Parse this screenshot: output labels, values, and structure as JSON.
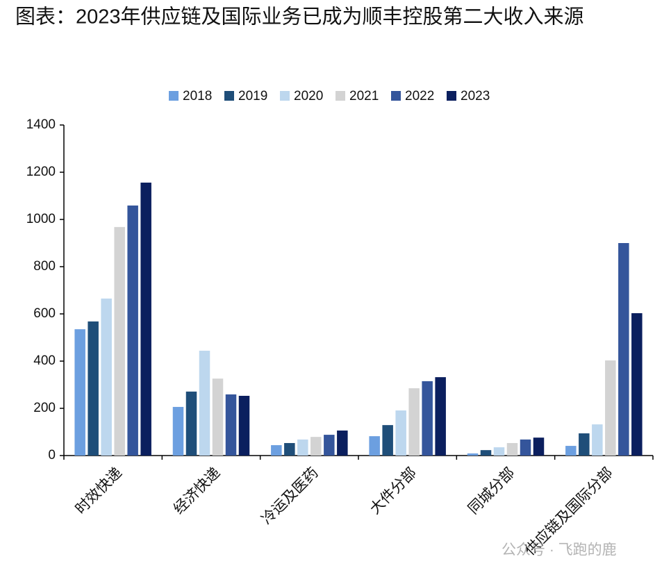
{
  "chart_data": {
    "type": "bar",
    "title": "图表：2023年供应链及国际业务已成为顺丰控股第二大收入来源",
    "categories": [
      "时效快递",
      "经济快递",
      "冷运及医药",
      "大件分部",
      "同城分部",
      "供应链及国际分部"
    ],
    "series": [
      {
        "name": "2018",
        "color": "#6c9fe0",
        "values": [
          535,
          206,
          44,
          82,
          9,
          41
        ]
      },
      {
        "name": "2019",
        "color": "#1f4e79",
        "values": [
          568,
          271,
          53,
          129,
          23,
          94
        ]
      },
      {
        "name": "2020",
        "color": "#bdd7ee",
        "values": [
          665,
          444,
          68,
          191,
          35,
          132
        ]
      },
      {
        "name": "2021",
        "color": "#d3d3d3",
        "values": [
          968,
          326,
          79,
          285,
          53,
          403
        ]
      },
      {
        "name": "2022",
        "color": "#34559b",
        "values": [
          1059,
          259,
          88,
          315,
          68,
          900
        ]
      },
      {
        "name": "2023",
        "color": "#0b1f5e",
        "values": [
          1156,
          253,
          106,
          332,
          76,
          603
        ]
      }
    ],
    "ylim": [
      0,
      1400
    ],
    "yticks": [
      0,
      200,
      400,
      600,
      800,
      1000,
      1200,
      1400
    ],
    "watermark": "公众号 · 飞跑的鹿"
  }
}
